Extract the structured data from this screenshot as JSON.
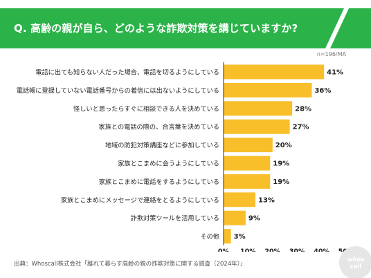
{
  "header": {
    "question": "Q. 高齢の親が自ら、どのような詐欺対策を講じていますか?"
  },
  "sample_note": "n=196/MA",
  "source": "出典：Whoscall株式会社「離れて暮らす高齢の親の詐欺対策に関する調査（2024年）」",
  "logo": {
    "text_line1": "whos",
    "text_line2": "call",
    "color": "#e6e6e6"
  },
  "colors": {
    "accent": "#2bb34a",
    "bar": "#f8bf2a",
    "axis": "#333333"
  },
  "chart_data": {
    "type": "bar",
    "orientation": "horizontal",
    "categories": [
      "電話に出ても知らない人だった場合、電話を切るようにしている",
      "電話帳に登録していない電話番号からの着信には出ないようにしている",
      "怪しいと思ったらすぐに相談できる人を決めている",
      "家族との電話の際の、合言葉を決めている",
      "地域の防犯対策講座などに参加している",
      "家族とこまめに会うようにしている",
      "家族とこまめに電話をするようにしている",
      "家族とこまめにメッセージで連絡をとるようにしている",
      "詐欺対策ツールを活用している",
      "その他"
    ],
    "values": [
      41,
      36,
      28,
      27,
      20,
      19,
      19,
      13,
      9,
      3
    ],
    "value_labels": [
      "41%",
      "36%",
      "28%",
      "27%",
      "20%",
      "19%",
      "19%",
      "13%",
      "9%",
      "3%"
    ],
    "xlim": [
      0,
      50
    ],
    "x_ticks": [
      0,
      10,
      20,
      30,
      40,
      50
    ],
    "x_tick_labels": [
      "0%",
      "10%",
      "20%",
      "30%",
      "40%",
      "50%"
    ],
    "grid": false,
    "legend": "none",
    "title": "",
    "xlabel": "",
    "ylabel": ""
  }
}
